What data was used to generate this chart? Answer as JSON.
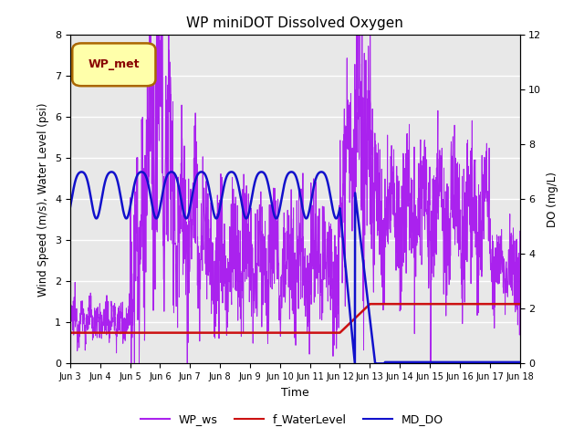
{
  "title": "WP miniDOT Dissolved Oxygen",
  "ylabel_left": "Wind Speed (m/s), Water Level (psi)",
  "ylabel_right": "DO (mg/L)",
  "xlabel": "Time",
  "legend_label": "WP_met",
  "ylim_left": [
    0.0,
    8.0
  ],
  "ylim_right": [
    0,
    12
  ],
  "yticks_left": [
    0.0,
    1.0,
    2.0,
    3.0,
    4.0,
    5.0,
    6.0,
    7.0,
    8.0
  ],
  "yticks_right": [
    0,
    2,
    4,
    6,
    8,
    10,
    12
  ],
  "background_color": "#e8e8e8",
  "line_colors": {
    "WP_ws": "#aa22ee",
    "f_WaterLevel": "#cc1111",
    "MD_DO": "#1111cc"
  },
  "xtick_labels": [
    "Jun 3",
    "Jun 4",
    "Jun 5",
    "Jun 6",
    "Jun 7",
    "Jun 8",
    "Jun 9",
    "Jun 10",
    "Jun 11",
    "Jun 12",
    "Jun 13",
    "Jun 14",
    "Jun 15",
    "Jun 16",
    "Jun 17",
    "Jun 18"
  ],
  "legend_box_color": "#ffffaa",
  "legend_box_edge": "#aa6600",
  "do_scale": 0.6667
}
